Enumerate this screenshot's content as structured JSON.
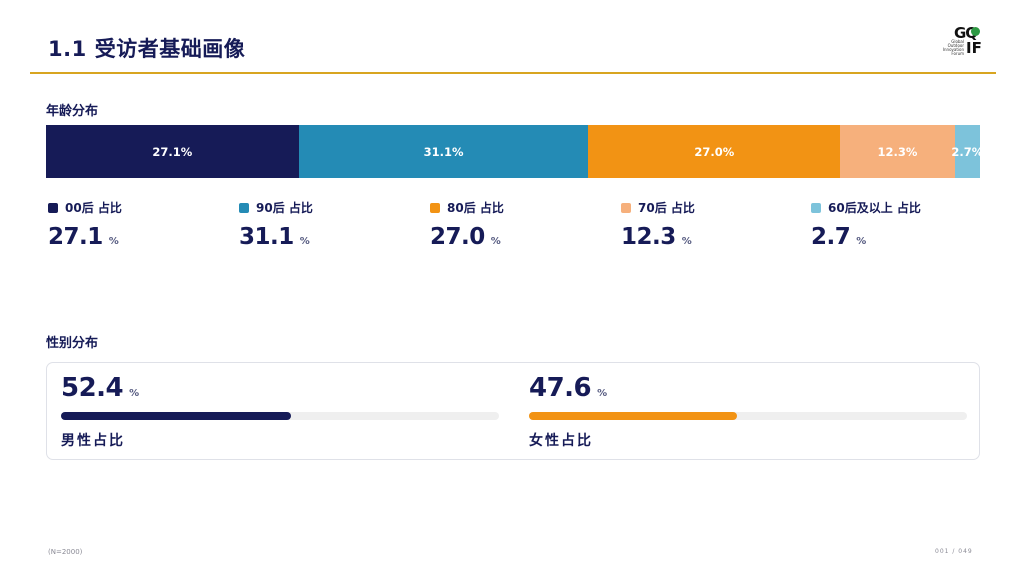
{
  "header": {
    "number": "1.1",
    "title": "受访者基础画像",
    "logo_top": "GQ",
    "logo_bottom": "IF",
    "logo_text": [
      "Global",
      "Outdoor",
      "Innovation",
      "Forum"
    ]
  },
  "colors": {
    "navy": "#161b57",
    "teal": "#248bb5",
    "orange": "#f29314",
    "peach": "#f6b07c",
    "light_blue": "#7dc3db",
    "rule_gold": "#d8a520"
  },
  "age": {
    "section_title": "年龄分布",
    "pct_unit": "%"
  },
  "gender": {
    "section_title": "性别分布",
    "pct_unit": "%"
  },
  "chart_data": [
    {
      "type": "bar",
      "stacked": true,
      "orientation": "horizontal",
      "title": "年龄分布",
      "categories": [
        "00后",
        "90后",
        "80后",
        "70后",
        "60后及以上"
      ],
      "values": [
        27.1,
        31.1,
        27.0,
        12.3,
        2.7
      ],
      "segment_labels": [
        "27.1%",
        "31.1%",
        "27.0%",
        "12.3%",
        "2.7%"
      ],
      "legend_labels": [
        "00后 占比",
        "90后 占比",
        "80后 占比",
        "70后 占比",
        "60后及以上 占比"
      ],
      "display_values": [
        "27.1",
        "31.1",
        "27.0",
        "12.3",
        "2.7"
      ],
      "colors": [
        "#161b57",
        "#248bb5",
        "#f29314",
        "#f6b07c",
        "#7dc3db"
      ],
      "unit": "%"
    },
    {
      "type": "bar",
      "orientation": "horizontal",
      "title": "性别分布",
      "categories": [
        "男性占比",
        "女性占比"
      ],
      "values": [
        52.4,
        47.6
      ],
      "display_values": [
        "52.4",
        "47.6"
      ],
      "colors": [
        "#161b57",
        "#f29314"
      ],
      "track_color": "#efefef",
      "unit": "%"
    }
  ],
  "footer": {
    "note": "(N=2000)",
    "page": "001 / 049"
  }
}
